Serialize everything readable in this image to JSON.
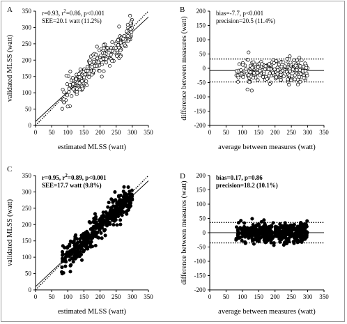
{
  "chart_data": [
    {
      "panel": "A",
      "type": "scatter",
      "marker": "open",
      "xlabel": "estimated MLSS (watt)",
      "ylabel": "validated MLSS (watt)",
      "xlim": [
        0,
        350
      ],
      "ylim": [
        0,
        350
      ],
      "xticks": [
        "0",
        "50",
        "100",
        "150",
        "200",
        "250",
        "300",
        "350"
      ],
      "yticks": [
        "0",
        "50",
        "100",
        "150",
        "200",
        "250",
        "300",
        "350"
      ],
      "annotations": [
        "r=0.93, r²=0.86, p<0.001",
        "SEE=20.1 watt (11.2%)"
      ],
      "lines": [
        {
          "kind": "identity",
          "style": "dotted",
          "from": [
            0,
            0
          ],
          "to": [
            350,
            350
          ]
        },
        {
          "kind": "regression",
          "style": "solid",
          "from": [
            0,
            12
          ],
          "to": [
            350,
            332
          ]
        }
      ],
      "x_range_of_points": [
        80,
        300
      ],
      "n_points_approx": 260
    },
    {
      "panel": "B",
      "type": "scatter",
      "marker": "open",
      "xlabel": "average between measures (watt)",
      "ylabel": "difference between measures (watt)",
      "xlim": [
        0,
        350
      ],
      "ylim": [
        -200,
        200
      ],
      "xticks": [
        "0",
        "50",
        "100",
        "150",
        "200",
        "250",
        "300",
        "350"
      ],
      "yticks": [
        "200",
        "150",
        "100",
        "50",
        "0",
        "-50",
        "-100",
        "-150",
        "-200"
      ],
      "annotations": [
        "bias=-7.7, p<0.001",
        "precision=20.5 (11.4%)"
      ],
      "lines": [
        {
          "kind": "bias",
          "style": "solid",
          "y": -7.7
        },
        {
          "kind": "upper-limit",
          "style": "dotted",
          "y": 32.5
        },
        {
          "kind": "lower-limit",
          "style": "dotted",
          "y": -47.9
        }
      ],
      "x_range_of_points": [
        80,
        300
      ],
      "n_points_approx": 260
    },
    {
      "panel": "C",
      "type": "scatter",
      "marker": "filled",
      "xlabel": "estimated MLSS (watt)",
      "ylabel": "validated MLSS (watt)",
      "xlim": [
        0,
        350
      ],
      "ylim": [
        0,
        350
      ],
      "xticks": [
        "0",
        "50",
        "100",
        "150",
        "200",
        "250",
        "300",
        "350"
      ],
      "yticks": [
        "0",
        "50",
        "100",
        "150",
        "200",
        "250",
        "300",
        "350"
      ],
      "annotations": [
        "r=0.95, r²=0.89, p<0.001",
        "SEE=17.7 watt (9.8%)"
      ],
      "lines": [
        {
          "kind": "identity",
          "style": "dotted",
          "from": [
            0,
            0
          ],
          "to": [
            350,
            350
          ]
        },
        {
          "kind": "regression",
          "style": "solid",
          "from": [
            0,
            10
          ],
          "to": [
            350,
            334
          ]
        }
      ],
      "x_range_of_points": [
        80,
        300
      ],
      "n_points_approx": 400
    },
    {
      "panel": "D",
      "type": "scatter",
      "marker": "filled",
      "xlabel": "average between measures (watt)",
      "ylabel": "difference between measures (watt)",
      "xlim": [
        0,
        350
      ],
      "ylim": [
        -200,
        200
      ],
      "xticks": [
        "0",
        "50",
        "100",
        "150",
        "200",
        "250",
        "300",
        "350"
      ],
      "yticks": [
        "200",
        "150",
        "100",
        "50",
        "0",
        "-50",
        "-100",
        "-150",
        "-200"
      ],
      "annotations": [
        "bias=0.17, p=0.86",
        "precision=18.2 (10.1%)"
      ],
      "lines": [
        {
          "kind": "bias",
          "style": "solid",
          "y": 0.17
        },
        {
          "kind": "upper-limit",
          "style": "dotted",
          "y": 35.8
        },
        {
          "kind": "lower-limit",
          "style": "dotted",
          "y": -35.5
        }
      ],
      "x_range_of_points": [
        80,
        300
      ],
      "n_points_approx": 400
    }
  ]
}
